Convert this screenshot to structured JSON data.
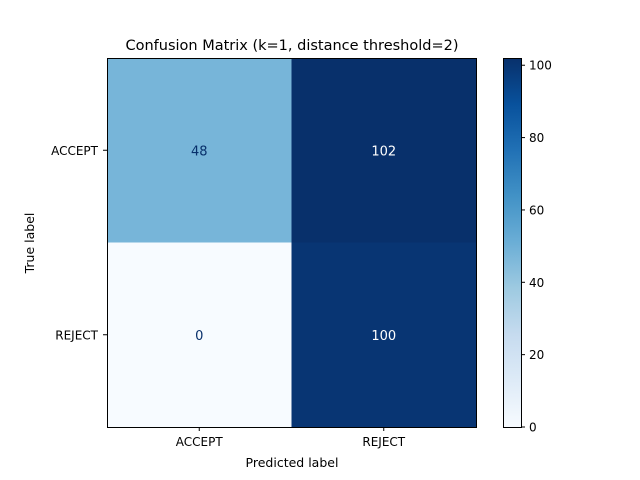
{
  "chart_data": {
    "type": "heatmap",
    "title": "Confusion Matrix (k=1, distance threshold=2)",
    "xlabel": "Predicted label",
    "ylabel": "True label",
    "x_categories": [
      "ACCEPT",
      "REJECT"
    ],
    "y_categories": [
      "ACCEPT",
      "REJECT"
    ],
    "values": [
      [
        48,
        102
      ],
      [
        0,
        100
      ]
    ],
    "colormap": "Blues",
    "color_range": [
      0,
      102
    ],
    "colorbar_ticks": [
      0,
      20,
      40,
      60,
      80,
      100
    ],
    "grid": false
  }
}
